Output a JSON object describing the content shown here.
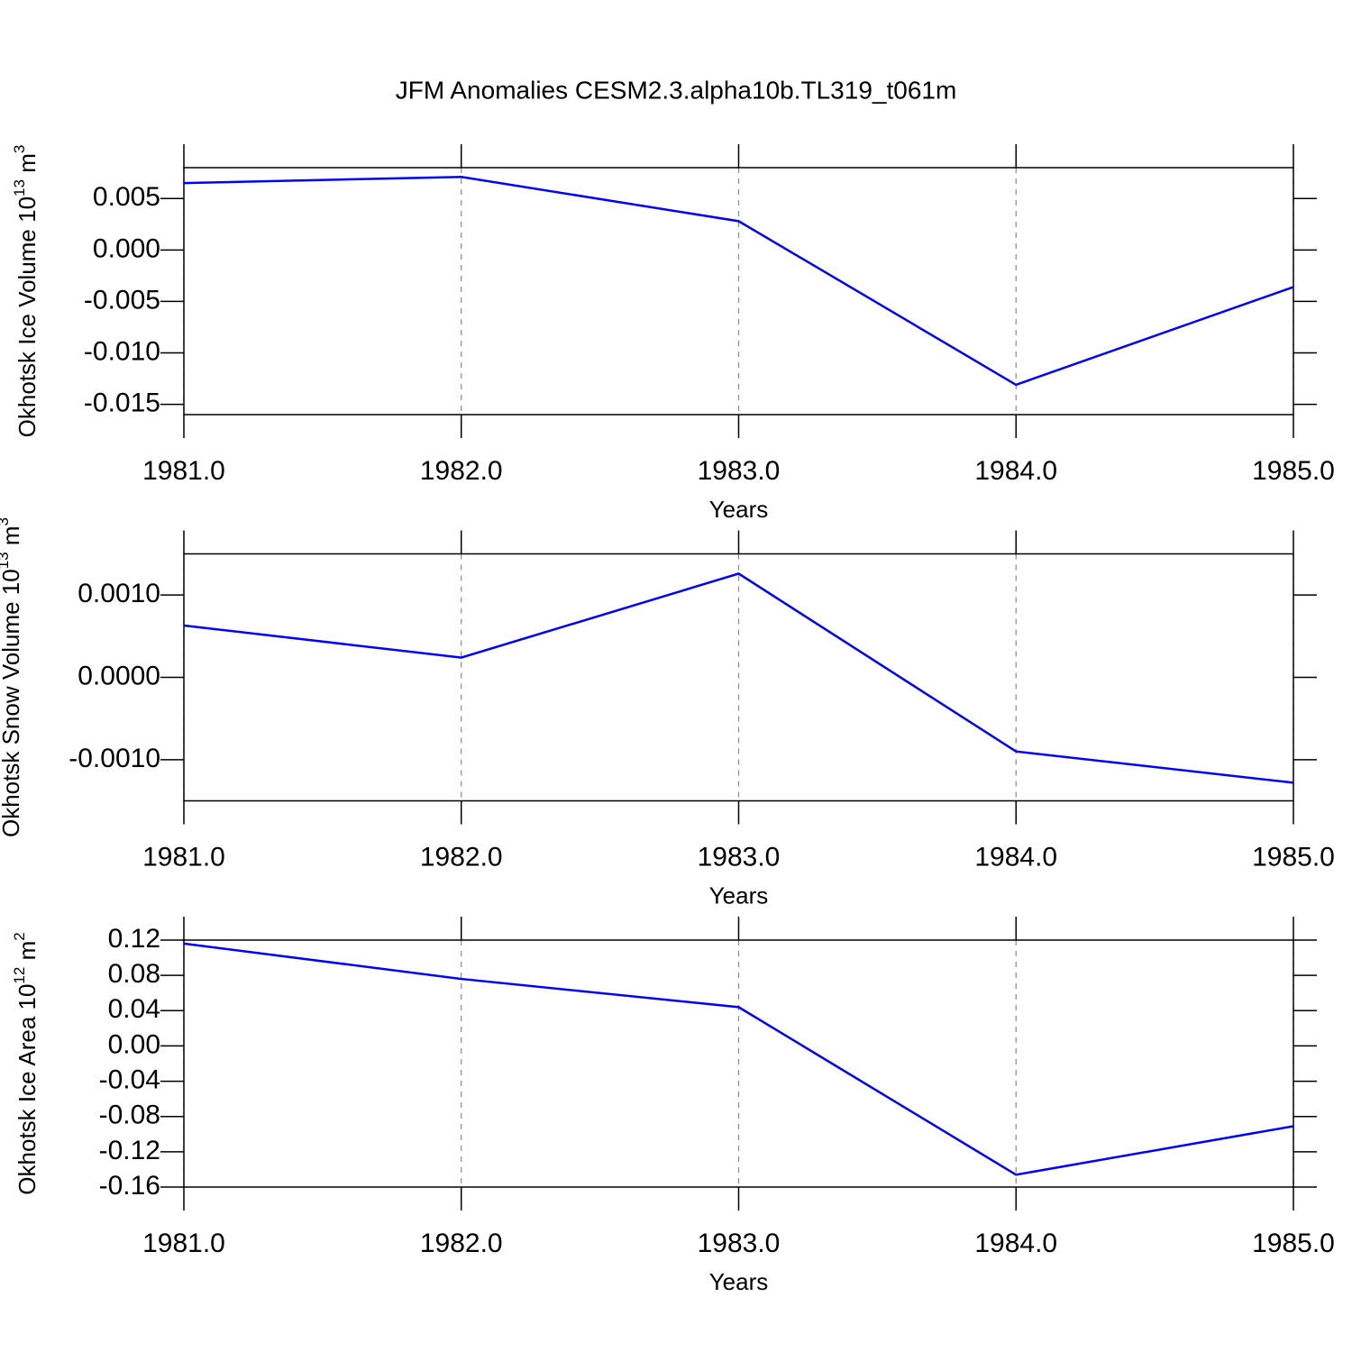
{
  "title": "JFM Anomalies CESM2.3.alpha10b.TL319_t061m",
  "chart_data": [
    {
      "type": "line",
      "ylabel": [
        "Okhotsk Ice Volume 10",
        "13",
        " m",
        "3"
      ],
      "xlabel": "Years",
      "x": [
        1981,
        1982,
        1983,
        1984,
        1985
      ],
      "values": [
        0.0065,
        0.0071,
        0.0028,
        -0.0131,
        -0.0036
      ],
      "color": "#0000ff",
      "xlim": [
        1981,
        1985
      ],
      "ylim": [
        -0.016,
        0.008
      ],
      "xticks": [
        {
          "value": 1981,
          "label": "1981.0"
        },
        {
          "value": 1982,
          "label": "1982.0"
        },
        {
          "value": 1983,
          "label": "1983.0"
        },
        {
          "value": 1984,
          "label": "1984.0"
        },
        {
          "value": 1985,
          "label": "1985.0"
        }
      ],
      "yticks": [
        0.005,
        {
          "value": 0,
          "label": "0.000"
        },
        -0.005,
        {
          "value": -0.01,
          "label": "-0.010"
        },
        -0.015
      ],
      "grid": "x"
    },
    {
      "type": "line",
      "ylabel": [
        "Okhotsk Snow Volume 10",
        "13",
        " m",
        "3"
      ],
      "xlabel": "Years",
      "x": [
        1981,
        1982,
        1983,
        1984,
        1985
      ],
      "values": [
        0.00063,
        0.00024,
        0.00126,
        -0.0009,
        -0.00128
      ],
      "color": "#0000ff",
      "xlim": [
        1981,
        1985
      ],
      "ylim": [
        -0.0015,
        0.0015
      ],
      "xticks": [
        {
          "value": 1981,
          "label": "1981.0"
        },
        {
          "value": 1982,
          "label": "1982.0"
        },
        {
          "value": 1983,
          "label": "1983.0"
        },
        {
          "value": 1984,
          "label": "1984.0"
        },
        {
          "value": 1985,
          "label": "1985.0"
        }
      ],
      "yticks": [
        {
          "value": 0.001,
          "label": "0.0010"
        },
        {
          "value": 0,
          "label": "0.0000"
        },
        {
          "value": -0.001,
          "label": "-0.0010"
        }
      ],
      "grid": "x"
    },
    {
      "type": "line",
      "ylabel": [
        "Okhotsk Ice Area 10",
        "12",
        " m",
        "2"
      ],
      "xlabel": "Years",
      "x": [
        1981,
        1982,
        1983,
        1984,
        1985
      ],
      "values": [
        0.116,
        0.076,
        0.044,
        -0.146,
        -0.091
      ],
      "color": "#0000ff",
      "xlim": [
        1981,
        1985
      ],
      "ylim": [
        -0.16,
        0.12
      ],
      "xticks": [
        {
          "value": 1981,
          "label": "1981.0"
        },
        {
          "value": 1982,
          "label": "1982.0"
        },
        {
          "value": 1983,
          "label": "1983.0"
        },
        {
          "value": 1984,
          "label": "1984.0"
        },
        {
          "value": 1985,
          "label": "1985.0"
        }
      ],
      "yticks": [
        0.12,
        0.08,
        0.04,
        {
          "value": 0,
          "label": "0.00"
        },
        -0.04,
        -0.08,
        -0.12,
        -0.16
      ],
      "grid": "x"
    }
  ]
}
